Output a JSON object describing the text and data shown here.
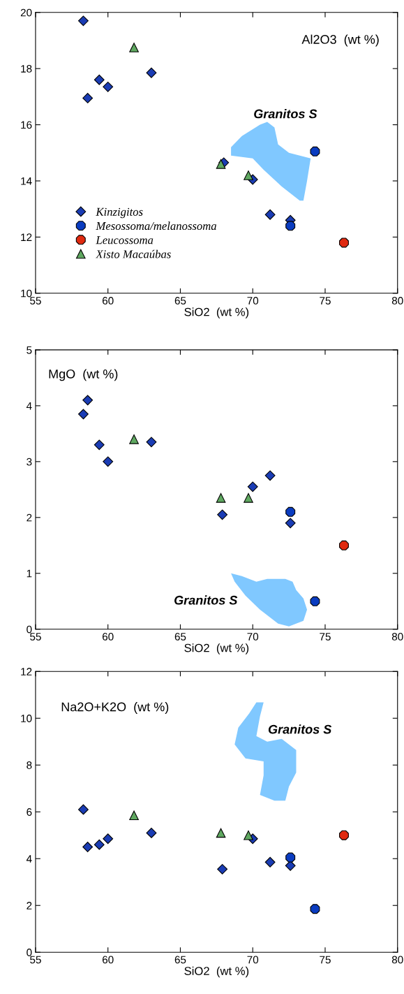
{
  "chart_data": [
    {
      "type": "scatter",
      "xlabel": "SiO2  (wt %)",
      "xlim": [
        55,
        80
      ],
      "xticks": [
        55,
        60,
        65,
        70,
        75,
        80
      ],
      "ylim": [
        10,
        20
      ],
      "yticks": [
        10,
        12,
        14,
        16,
        18,
        20
      ],
      "grid": false,
      "legend": "bottom left",
      "annotations": [
        "Al2O3  (wt %)",
        "Granitos S"
      ],
      "series": [
        {
          "name": "Kinzigitos",
          "marker": "diamond",
          "color": "#1a3cb4",
          "x": [
            58.3,
            58.6,
            59.4,
            60.0,
            63.0,
            68.0,
            70.0,
            71.2,
            72.6
          ],
          "values": [
            19.7,
            16.95,
            17.6,
            17.35,
            17.85,
            14.65,
            14.05,
            12.8,
            12.6
          ]
        },
        {
          "name": "Mesossoma/melanossoma",
          "marker": "circle",
          "color": "#0a3cc0",
          "x": [
            72.6,
            74.3
          ],
          "values": [
            12.4,
            15.05
          ]
        },
        {
          "name": "Leucossoma",
          "marker": "circle",
          "color": "#e02a10",
          "x": [
            76.3
          ],
          "values": [
            11.8
          ]
        },
        {
          "name": "Xisto Macaúbas",
          "marker": "triangle",
          "color": "#5fa860",
          "x": [
            61.8,
            67.8,
            69.7
          ],
          "values": [
            18.75,
            14.6,
            14.2
          ]
        }
      ]
    },
    {
      "type": "scatter",
      "xlabel": "SiO2  (wt %)",
      "xlim": [
        55,
        80
      ],
      "xticks": [
        55,
        60,
        65,
        70,
        75,
        80
      ],
      "ylim": [
        0,
        5
      ],
      "yticks": [
        0,
        1,
        2,
        3,
        4,
        5
      ],
      "grid": false,
      "annotations": [
        "MgO  (wt %)",
        "Granitos S"
      ],
      "series": [
        {
          "marker": "diamond",
          "color": "#1a3cb4",
          "x": [
            58.3,
            58.6,
            59.4,
            60.0,
            63.0,
            67.9,
            70.0,
            71.2,
            72.6
          ],
          "values": [
            3.85,
            4.1,
            3.3,
            3.0,
            3.35,
            2.05,
            2.55,
            2.75,
            1.9
          ]
        },
        {
          "marker": "circle",
          "color": "#0a3cc0",
          "x": [
            72.6,
            74.3
          ],
          "values": [
            2.1,
            0.5
          ]
        },
        {
          "marker": "circle",
          "color": "#e02a10",
          "x": [
            76.3
          ],
          "values": [
            1.5
          ]
        },
        {
          "marker": "triangle",
          "color": "#5fa860",
          "x": [
            61.8,
            67.8,
            69.7
          ],
          "values": [
            3.4,
            2.35,
            2.35
          ]
        }
      ]
    },
    {
      "type": "scatter",
      "xlabel": "SiO2  (wt %)",
      "xlim": [
        55,
        80
      ],
      "xticks": [
        55,
        60,
        65,
        70,
        75,
        80
      ],
      "ylim": [
        0,
        12
      ],
      "yticks": [
        0,
        2,
        4,
        6,
        8,
        10,
        12
      ],
      "grid": false,
      "annotations": [
        "Na2O+K2O  (wt %)",
        "Granitos S"
      ],
      "series": [
        {
          "marker": "diamond",
          "color": "#1a3cb4",
          "x": [
            58.3,
            58.6,
            59.4,
            60.0,
            63.0,
            67.9,
            70.0,
            71.2,
            72.6
          ],
          "values": [
            6.1,
            4.5,
            4.6,
            4.85,
            5.1,
            3.55,
            4.85,
            3.85,
            3.7
          ]
        },
        {
          "marker": "circle",
          "color": "#0a3cc0",
          "x": [
            72.6,
            74.3
          ],
          "values": [
            4.05,
            1.85
          ]
        },
        {
          "marker": "circle",
          "color": "#e02a10",
          "x": [
            76.3
          ],
          "values": [
            5.0
          ]
        },
        {
          "marker": "triangle",
          "color": "#5fa860",
          "x": [
            61.8,
            67.8,
            69.7
          ],
          "values": [
            5.85,
            5.1,
            5.0
          ]
        }
      ]
    }
  ]
}
